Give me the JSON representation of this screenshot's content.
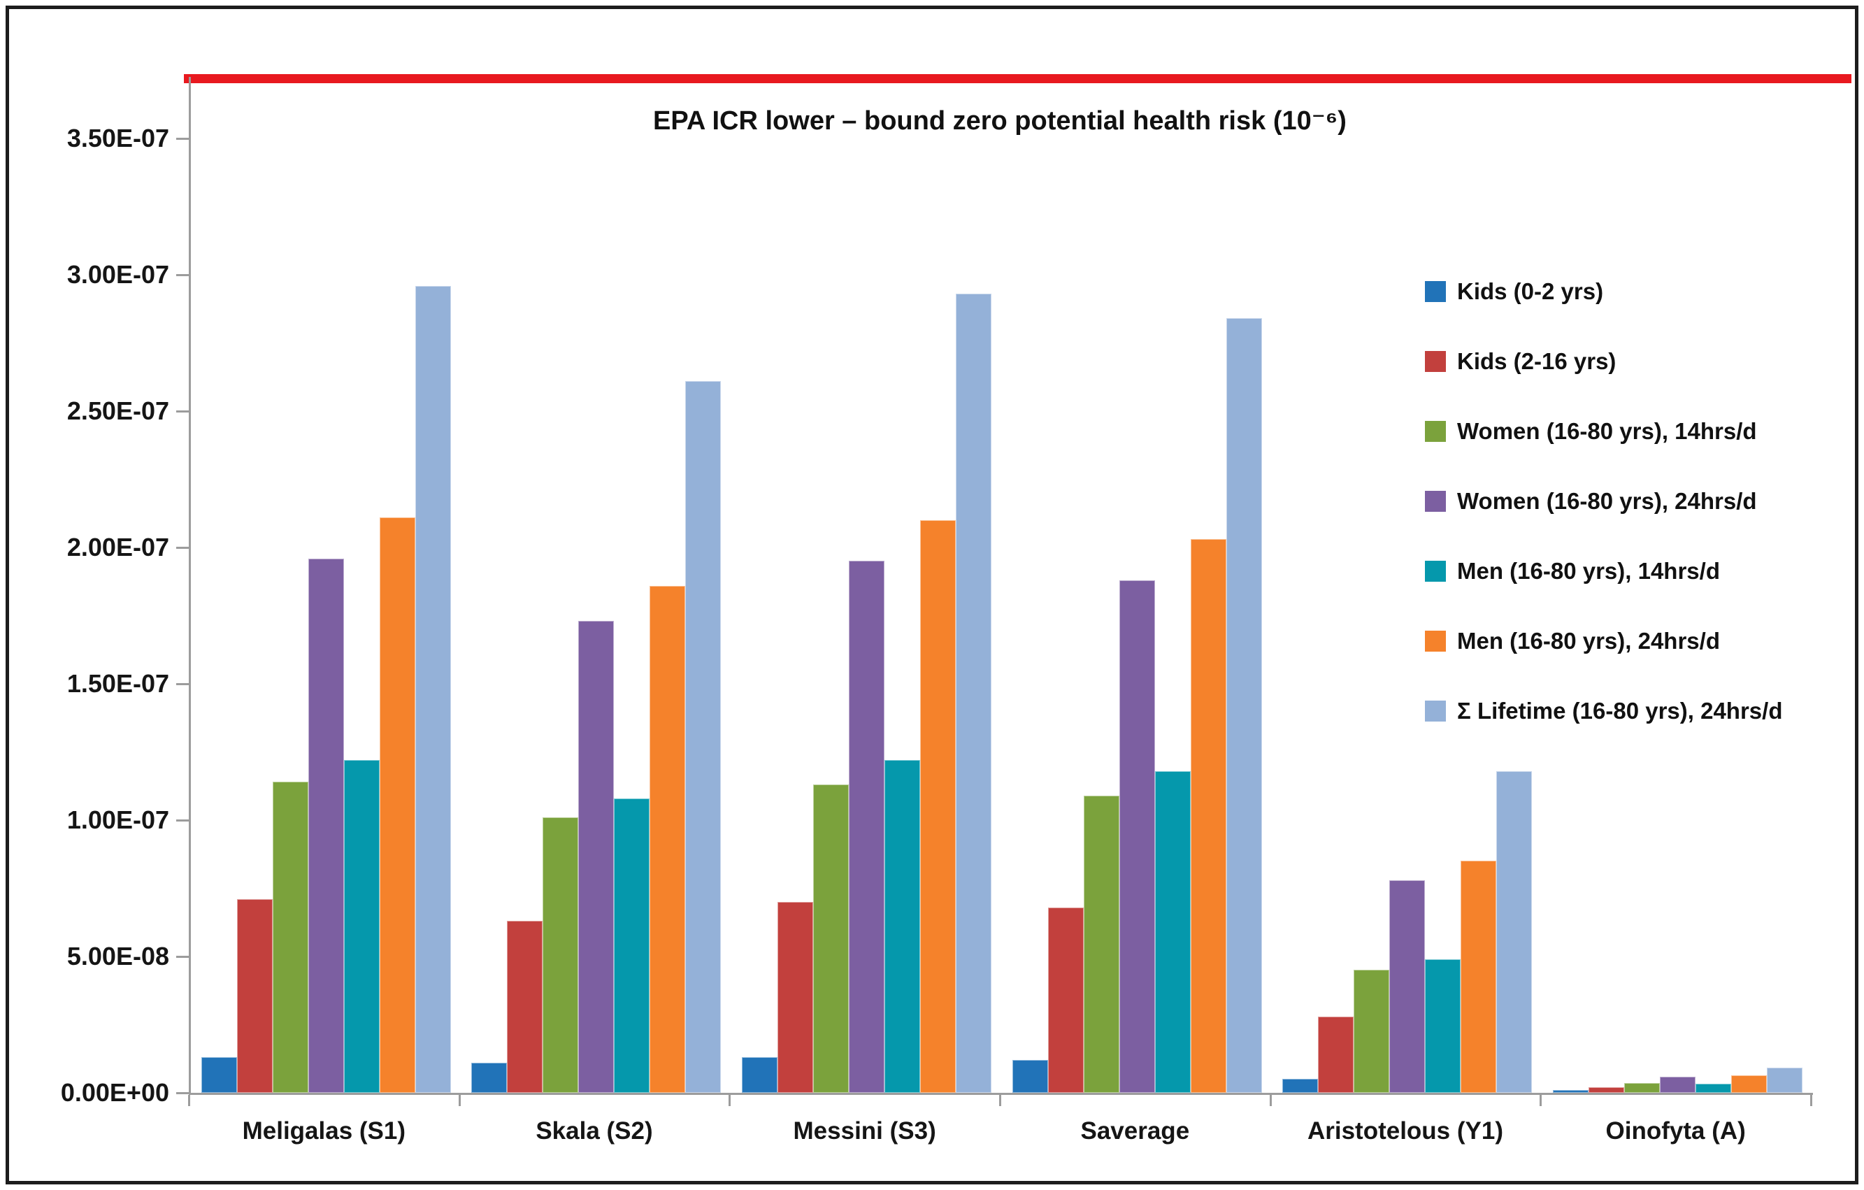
{
  "chart_data": {
    "type": "bar",
    "title": "EPA ICR lower – bound zero potential health risk (10⁻⁶)",
    "categories": [
      "Meligalas (S1)",
      "Skala (S2)",
      "Messini (S3)",
      "Saverage",
      "Aristotelous (Y1)",
      "Oinofyta (A)"
    ],
    "series": [
      {
        "name": "Kids (0-2 yrs)",
        "color": "#2173B8",
        "values": [
          1.3e-08,
          1.1e-08,
          1.3e-08,
          1.2e-08,
          5e-09,
          1e-09
        ]
      },
      {
        "name": "Kids (2-16 yrs)",
        "color": "#C2403D",
        "values": [
          7.1e-08,
          6.3e-08,
          7e-08,
          6.8e-08,
          2.8e-08,
          2e-09
        ]
      },
      {
        "name": "Women (16-80 yrs), 14hrs/d",
        "color": "#7BA23C",
        "values": [
          1.14e-07,
          1.01e-07,
          1.13e-07,
          1.09e-07,
          4.5e-08,
          3.5e-09
        ]
      },
      {
        "name": "Women (16-80 yrs), 24hrs/d",
        "color": "#7C5FA1",
        "values": [
          1.96e-07,
          1.73e-07,
          1.95e-07,
          1.88e-07,
          7.8e-08,
          6e-09
        ]
      },
      {
        "name": "Men (16-80 yrs), 14hrs/d",
        "color": "#0598AC",
        "values": [
          1.22e-07,
          1.08e-07,
          1.22e-07,
          1.18e-07,
          4.9e-08,
          3.3e-09
        ]
      },
      {
        "name": "Men (16-80 yrs), 24hrs/d",
        "color": "#F5822B",
        "values": [
          2.11e-07,
          1.86e-07,
          2.1e-07,
          2.03e-07,
          8.5e-08,
          6.4e-09
        ]
      },
      {
        "name": "Σ Lifetime (16-80 yrs), 24hrs/d",
        "color": "#94B1D8",
        "values": [
          2.96e-07,
          2.61e-07,
          2.93e-07,
          2.84e-07,
          1.18e-07,
          9.2e-09
        ]
      }
    ],
    "y_axis": {
      "min": 0,
      "max": 3.5e-07,
      "tick_step": 5e-08,
      "tick_labels": [
        "0.00E+00",
        "5.00E-08",
        "1.00E-07",
        "1.50E-07",
        "2.00E-07",
        "2.50E-07",
        "3.00E-07",
        "3.50E-07"
      ]
    },
    "reference_line": {
      "value": 3.72e-07,
      "color": "#E8191F"
    },
    "legend_position": "right-inside",
    "grid": false
  }
}
